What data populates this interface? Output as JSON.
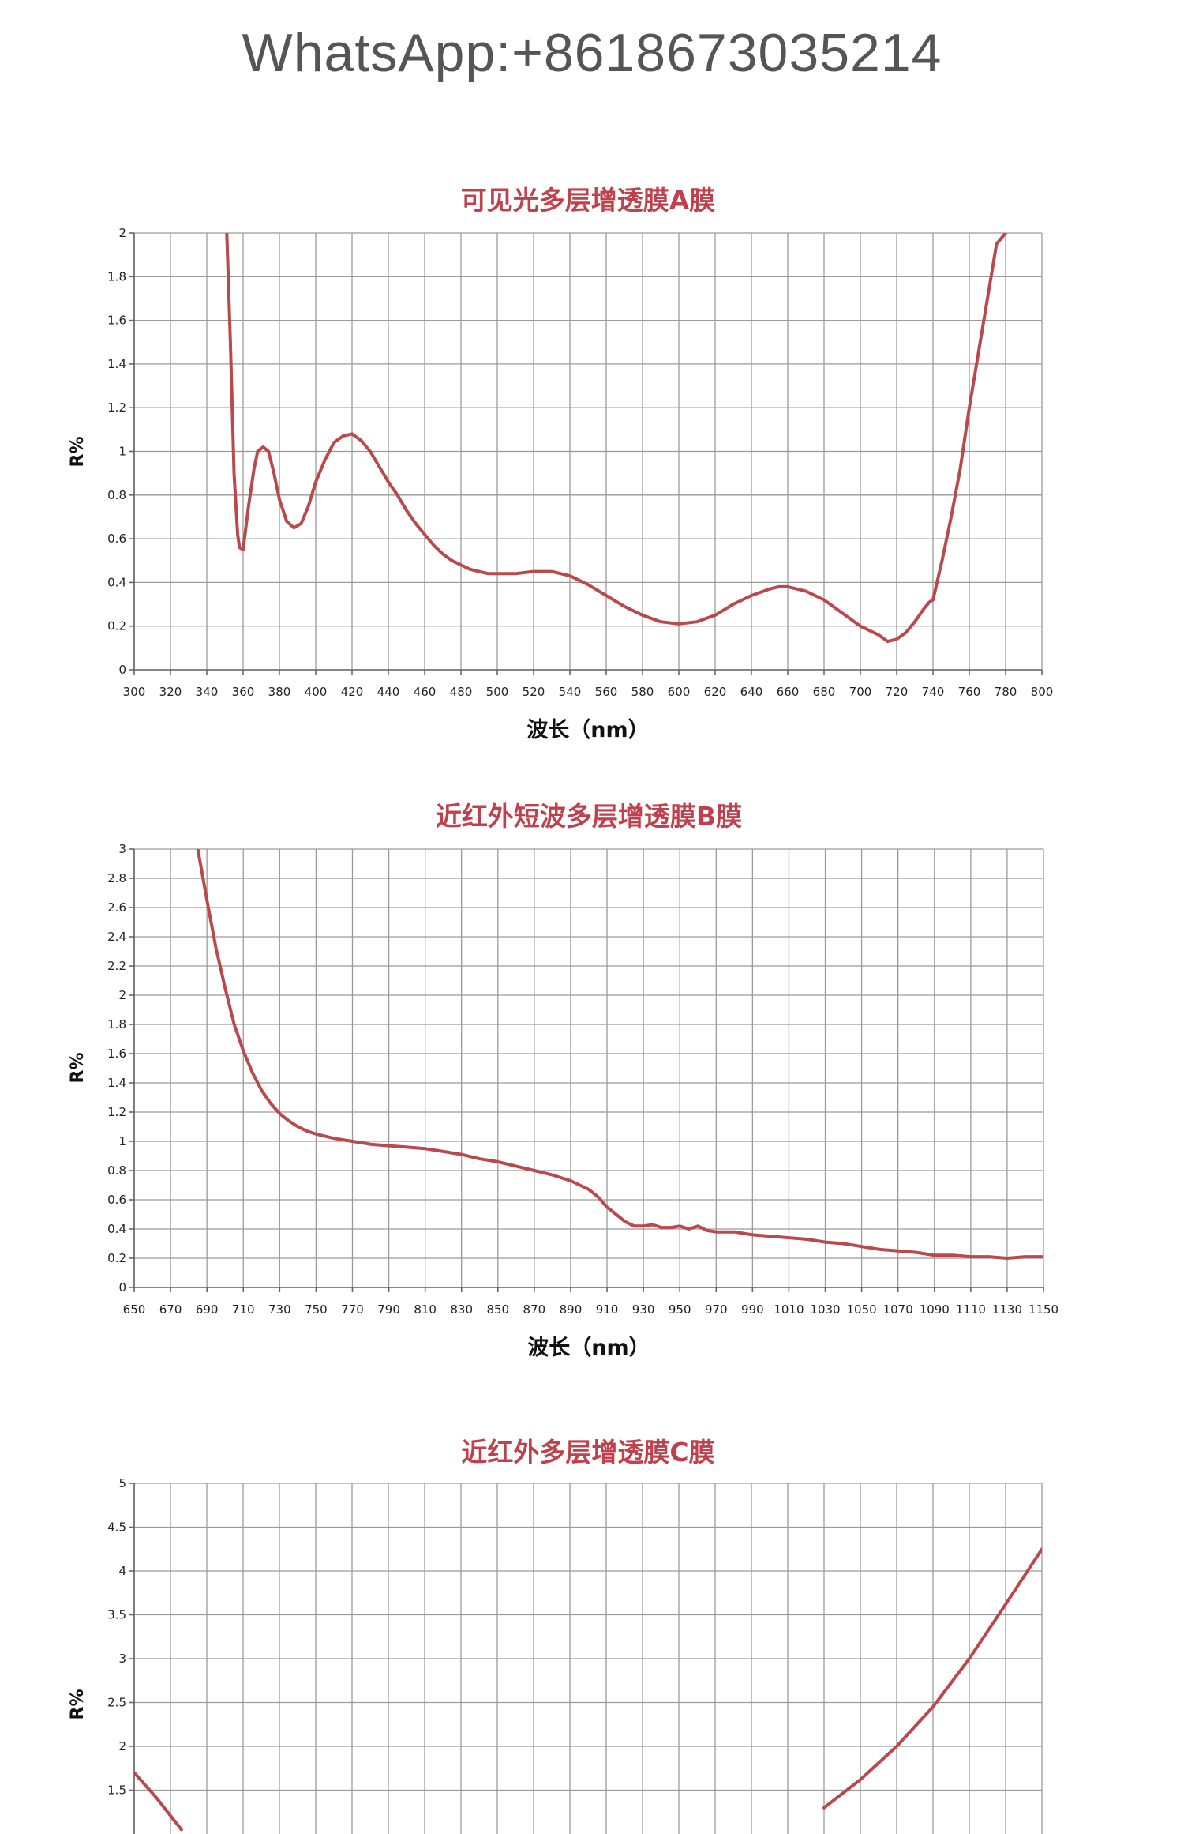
{
  "watermark": "WhatsApp:+8618673035214",
  "chart_data": [
    {
      "type": "line",
      "title": "可见光多层增透膜A膜",
      "xlabel": "波长（nm）",
      "ylabel": "R%",
      "xlim": [
        300,
        800
      ],
      "ylim": [
        0,
        2
      ],
      "xticks": [
        "300",
        "320",
        "340",
        "360",
        "380",
        "400",
        "420",
        "440",
        "460",
        "480",
        "500",
        "520",
        "540",
        "560",
        "580",
        "600",
        "620",
        "640",
        "660",
        "680",
        "700",
        "720",
        "740",
        "760",
        "780",
        "800"
      ],
      "yticks": [
        "0",
        "0.2",
        "0.4",
        "0.6",
        "0.8",
        "1",
        "1.2",
        "1.4",
        "1.6",
        "1.8",
        "2"
      ],
      "grid": true,
      "series": [
        {
          "color": "#b9494c",
          "x": [
            351,
            353,
            355,
            357,
            358,
            360,
            363,
            366,
            368,
            371,
            374,
            377,
            380,
            384,
            388,
            392,
            396,
            400,
            405,
            410,
            415,
            420,
            425,
            430,
            435,
            440,
            445,
            450,
            455,
            460,
            465,
            470,
            475,
            480,
            485,
            490,
            495,
            500,
            510,
            520,
            530,
            540,
            550,
            560,
            570,
            580,
            590,
            600,
            610,
            620,
            630,
            640,
            650,
            655,
            660,
            665,
            670,
            680,
            690,
            700,
            710,
            715,
            720,
            725,
            730,
            735,
            738,
            740,
            745,
            750,
            755,
            760,
            765,
            770,
            775,
            780
          ],
          "values": [
            2.0,
            1.5,
            0.9,
            0.62,
            0.56,
            0.55,
            0.75,
            0.92,
            1.0,
            1.02,
            1.0,
            0.9,
            0.78,
            0.68,
            0.65,
            0.67,
            0.75,
            0.86,
            0.96,
            1.04,
            1.07,
            1.08,
            1.05,
            1.0,
            0.93,
            0.86,
            0.8,
            0.73,
            0.67,
            0.62,
            0.57,
            0.53,
            0.5,
            0.48,
            0.46,
            0.45,
            0.44,
            0.44,
            0.44,
            0.45,
            0.45,
            0.43,
            0.39,
            0.34,
            0.29,
            0.25,
            0.22,
            0.21,
            0.22,
            0.25,
            0.3,
            0.34,
            0.37,
            0.38,
            0.38,
            0.37,
            0.36,
            0.32,
            0.26,
            0.2,
            0.16,
            0.13,
            0.14,
            0.17,
            0.22,
            0.28,
            0.31,
            0.32,
            0.5,
            0.7,
            0.92,
            1.2,
            1.45,
            1.7,
            1.95,
            2.0
          ]
        }
      ]
    },
    {
      "type": "line",
      "title": "近红外短波多层增透膜B膜",
      "xlabel": "波长（nm）",
      "ylabel": "R%",
      "xlim": [
        650,
        1150
      ],
      "ylim": [
        0,
        3
      ],
      "xticks": [
        "650",
        "670",
        "690",
        "710",
        "730",
        "750",
        "770",
        "790",
        "810",
        "830",
        "850",
        "870",
        "890",
        "910",
        "930",
        "950",
        "970",
        "990",
        "1010",
        "1030",
        "1050",
        "1070",
        "1090",
        "1110",
        "1130",
        "1150"
      ],
      "yticks": [
        "0",
        "0.2",
        "0.4",
        "0.6",
        "0.8",
        "1",
        "1.2",
        "1.4",
        "1.6",
        "1.8",
        "2",
        "2.2",
        "2.4",
        "2.6",
        "2.8",
        "3"
      ],
      "grid": true,
      "series": [
        {
          "color": "#b9494c",
          "x": [
            685,
            690,
            695,
            700,
            705,
            710,
            715,
            720,
            725,
            730,
            735,
            740,
            745,
            750,
            760,
            770,
            780,
            790,
            800,
            810,
            820,
            830,
            840,
            850,
            860,
            870,
            880,
            890,
            895,
            900,
            905,
            910,
            915,
            920,
            925,
            930,
            935,
            940,
            945,
            950,
            955,
            960,
            965,
            970,
            980,
            990,
            1000,
            1010,
            1020,
            1030,
            1040,
            1050,
            1060,
            1070,
            1080,
            1090,
            1100,
            1110,
            1120,
            1130,
            1140,
            1150
          ],
          "values": [
            3.0,
            2.65,
            2.32,
            2.05,
            1.8,
            1.62,
            1.47,
            1.35,
            1.26,
            1.19,
            1.14,
            1.1,
            1.07,
            1.05,
            1.02,
            1.0,
            0.98,
            0.97,
            0.96,
            0.95,
            0.93,
            0.91,
            0.88,
            0.86,
            0.83,
            0.8,
            0.77,
            0.73,
            0.7,
            0.67,
            0.62,
            0.55,
            0.5,
            0.45,
            0.42,
            0.42,
            0.43,
            0.41,
            0.41,
            0.42,
            0.4,
            0.42,
            0.39,
            0.38,
            0.38,
            0.36,
            0.35,
            0.34,
            0.33,
            0.31,
            0.3,
            0.28,
            0.26,
            0.25,
            0.24,
            0.22,
            0.22,
            0.21,
            0.21,
            0.2,
            0.21,
            0.21
          ]
        }
      ]
    },
    {
      "type": "line",
      "title": "近红外多层增透膜C膜",
      "xlabel": "",
      "ylabel": "R%",
      "xlim": [
        0,
        25
      ],
      "ylim": [
        0,
        5
      ],
      "yticks": [
        "1.5",
        "2",
        "2.5",
        "3",
        "3.5",
        "4",
        "4.5",
        "5"
      ],
      "grid": true,
      "series": [
        {
          "color": "#b9494c",
          "x": [
            0,
            0.6,
            1.3
          ],
          "values": [
            1.7,
            1.42,
            1.05
          ],
          "x2": [
            19.0,
            20.0,
            21.0,
            22.0,
            23.0,
            24.0,
            25.0
          ],
          "values2": [
            1.3,
            1.62,
            2.0,
            2.45,
            3.0,
            3.62,
            4.25
          ]
        }
      ]
    }
  ]
}
